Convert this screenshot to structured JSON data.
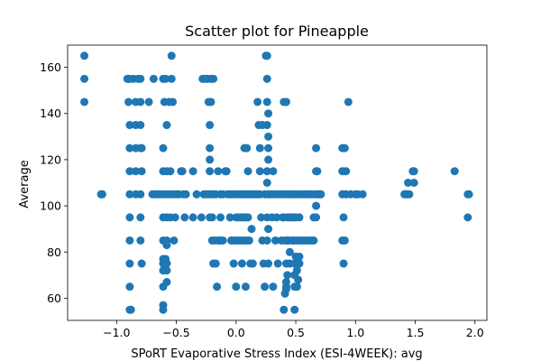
{
  "chart_data": {
    "type": "scatter",
    "title": "Scatter plot for Pineapple",
    "xlabel": "SPoRT Evaporative Stress Index (ESI-4WEEK): avg",
    "ylabel": "Average",
    "xlim": [
      -1.41,
      2.1
    ],
    "ylim": [
      50.4,
      169.6
    ],
    "xticks": [
      -1.0,
      -0.5,
      0.0,
      0.5,
      1.0,
      1.5,
      2.0
    ],
    "xtick_labels": [
      "−1.0",
      "−0.5",
      "0.0",
      "0.5",
      "1.0",
      "1.5",
      "2.0"
    ],
    "yticks": [
      60,
      80,
      100,
      120,
      140,
      160
    ],
    "ytick_labels": [
      "60",
      "80",
      "100",
      "120",
      "140",
      "160"
    ],
    "grid": false,
    "marker_color": "#1f77b4",
    "points": [
      [
        -1.27,
        165
      ],
      [
        -1.27,
        155
      ],
      [
        -1.27,
        145
      ],
      [
        -1.13,
        105
      ],
      [
        -1.12,
        105
      ],
      [
        -0.91,
        155
      ],
      [
        -0.9,
        155
      ],
      [
        -0.89,
        155
      ],
      [
        -0.86,
        155
      ],
      [
        -0.82,
        155
      ],
      [
        -0.8,
        155
      ],
      [
        -0.9,
        145
      ],
      [
        -0.89,
        135
      ],
      [
        -0.89,
        125
      ],
      [
        -0.89,
        115
      ],
      [
        -0.89,
        105
      ],
      [
        -0.89,
        95
      ],
      [
        -0.89,
        85
      ],
      [
        -0.89,
        75
      ],
      [
        -0.89,
        65
      ],
      [
        -0.89,
        55
      ],
      [
        -0.88,
        55
      ],
      [
        -0.84,
        145
      ],
      [
        -0.84,
        135
      ],
      [
        -0.84,
        125
      ],
      [
        -0.84,
        115
      ],
      [
        -0.84,
        105
      ],
      [
        -0.8,
        145
      ],
      [
        -0.8,
        135
      ],
      [
        -0.8,
        125
      ],
      [
        -0.8,
        105
      ],
      [
        -0.8,
        95
      ],
      [
        -0.8,
        85
      ],
      [
        -0.79,
        75
      ],
      [
        -0.79,
        125
      ],
      [
        -0.79,
        115
      ],
      [
        -0.73,
        145
      ],
      [
        -0.7,
        105
      ],
      [
        -0.69,
        155
      ],
      [
        -0.67,
        105
      ],
      [
        -0.66,
        105
      ],
      [
        -0.64,
        105
      ],
      [
        -0.61,
        155
      ],
      [
        -0.59,
        155
      ],
      [
        -0.6,
        145
      ],
      [
        -0.61,
        125
      ],
      [
        -0.61,
        115
      ],
      [
        -0.61,
        105
      ],
      [
        -0.61,
        95
      ],
      [
        -0.61,
        85
      ],
      [
        -0.61,
        77
      ],
      [
        -0.61,
        75
      ],
      [
        -0.61,
        72
      ],
      [
        -0.61,
        65
      ],
      [
        -0.61,
        57
      ],
      [
        -0.61,
        55
      ],
      [
        -0.58,
        135
      ],
      [
        -0.58,
        115
      ],
      [
        -0.58,
        105
      ],
      [
        -0.58,
        95
      ],
      [
        -0.58,
        85
      ],
      [
        -0.58,
        83
      ],
      [
        -0.59,
        77
      ],
      [
        -0.58,
        75
      ],
      [
        -0.58,
        72
      ],
      [
        -0.58,
        67
      ],
      [
        -0.56,
        145
      ],
      [
        -0.55,
        115
      ],
      [
        -0.55,
        105
      ],
      [
        -0.55,
        95
      ],
      [
        -0.54,
        165
      ],
      [
        -0.54,
        155
      ],
      [
        -0.53,
        145
      ],
      [
        -0.52,
        105
      ],
      [
        -0.51,
        95
      ],
      [
        -0.52,
        85
      ],
      [
        -0.5,
        105
      ],
      [
        -0.48,
        105
      ],
      [
        -0.46,
        115
      ],
      [
        -0.45,
        115
      ],
      [
        -0.44,
        105
      ],
      [
        -0.43,
        95
      ],
      [
        -0.42,
        105
      ],
      [
        -0.36,
        95
      ],
      [
        -0.36,
        115
      ],
      [
        -0.33,
        105
      ],
      [
        -0.29,
        95
      ],
      [
        -0.28,
        155
      ],
      [
        -0.26,
        155
      ],
      [
        -0.24,
        155
      ],
      [
        -0.21,
        155
      ],
      [
        -0.19,
        155
      ],
      [
        -0.27,
        105
      ],
      [
        -0.25,
        105
      ],
      [
        -0.23,
        105
      ],
      [
        -0.21,
        105
      ],
      [
        -0.19,
        105
      ],
      [
        -0.17,
        105
      ],
      [
        -0.23,
        145
      ],
      [
        -0.22,
        135
      ],
      [
        -0.22,
        125
      ],
      [
        -0.22,
        120
      ],
      [
        -0.22,
        115
      ],
      [
        -0.22,
        95
      ],
      [
        -0.21,
        145
      ],
      [
        -0.2,
        95
      ],
      [
        -0.2,
        85
      ],
      [
        -0.18,
        85
      ],
      [
        -0.17,
        75
      ],
      [
        -0.19,
        75
      ],
      [
        -0.16,
        65
      ],
      [
        -0.15,
        85
      ],
      [
        -0.14,
        85
      ],
      [
        -0.13,
        85
      ],
      [
        -0.13,
        105
      ],
      [
        -0.15,
        115
      ],
      [
        -0.13,
        95
      ],
      [
        -0.11,
        105
      ],
      [
        -0.11,
        85
      ],
      [
        -0.07,
        105
      ],
      [
        -0.05,
        105
      ],
      [
        -0.03,
        105
      ],
      [
        0.0,
        105
      ],
      [
        0.02,
        105
      ],
      [
        0.04,
        105
      ],
      [
        0.06,
        105
      ],
      [
        0.08,
        105
      ],
      [
        0.1,
        105
      ],
      [
        0.12,
        105
      ],
      [
        0.14,
        105
      ],
      [
        0.16,
        105
      ],
      [
        0.18,
        105
      ],
      [
        0.2,
        105
      ],
      [
        -0.09,
        115
      ],
      [
        -0.08,
        115
      ],
      [
        -0.05,
        95
      ],
      [
        -0.04,
        85
      ],
      [
        -0.02,
        75
      ],
      [
        0.0,
        95
      ],
      [
        0.02,
        95
      ],
      [
        0.04,
        95
      ],
      [
        0.06,
        95
      ],
      [
        0.08,
        95
      ],
      [
        0.1,
        95
      ],
      [
        -0.03,
        85
      ],
      [
        -0.01,
        85
      ],
      [
        0.01,
        85
      ],
      [
        0.03,
        85
      ],
      [
        0.05,
        85
      ],
      [
        0.07,
        85
      ],
      [
        0.09,
        85
      ],
      [
        0.11,
        85
      ],
      [
        0.0,
        65
      ],
      [
        0.05,
        75
      ],
      [
        0.08,
        65
      ],
      [
        0.1,
        115
      ],
      [
        0.12,
        75
      ],
      [
        0.13,
        90
      ],
      [
        0.14,
        75
      ],
      [
        0.07,
        125
      ],
      [
        0.09,
        125
      ],
      [
        0.1,
        105
      ],
      [
        0.18,
        145
      ],
      [
        0.19,
        135
      ],
      [
        0.2,
        125
      ],
      [
        0.2,
        115
      ],
      [
        0.22,
        135
      ],
      [
        0.21,
        95
      ],
      [
        0.22,
        85
      ],
      [
        0.23,
        75
      ],
      [
        0.24,
        65
      ],
      [
        0.24,
        105
      ],
      [
        0.25,
        165
      ],
      [
        0.26,
        165
      ],
      [
        0.26,
        155
      ],
      [
        0.26,
        145
      ],
      [
        0.27,
        140
      ],
      [
        0.26,
        135
      ],
      [
        0.27,
        130
      ],
      [
        0.27,
        125
      ],
      [
        0.27,
        120
      ],
      [
        0.26,
        115
      ],
      [
        0.26,
        110
      ],
      [
        0.27,
        105
      ],
      [
        0.26,
        95
      ],
      [
        0.27,
        90
      ],
      [
        0.26,
        85
      ],
      [
        0.27,
        75
      ],
      [
        0.28,
        105
      ],
      [
        0.3,
        105
      ],
      [
        0.32,
        105
      ],
      [
        0.34,
        95
      ],
      [
        0.35,
        105
      ],
      [
        0.35,
        75
      ],
      [
        0.3,
        95
      ],
      [
        0.33,
        85
      ],
      [
        0.31,
        115
      ],
      [
        0.31,
        65
      ],
      [
        0.37,
        105
      ],
      [
        0.39,
        105
      ],
      [
        0.4,
        95
      ],
      [
        0.41,
        85
      ],
      [
        0.38,
        85
      ],
      [
        0.39,
        95
      ],
      [
        0.42,
        105
      ],
      [
        0.43,
        95
      ],
      [
        0.43,
        85
      ],
      [
        0.42,
        75
      ],
      [
        0.43,
        70
      ],
      [
        0.42,
        65
      ],
      [
        0.44,
        105
      ],
      [
        0.45,
        95
      ],
      [
        0.44,
        85
      ],
      [
        0.45,
        75
      ],
      [
        0.45,
        80
      ],
      [
        0.4,
        145
      ],
      [
        0.42,
        145
      ],
      [
        0.41,
        62
      ],
      [
        0.4,
        55
      ],
      [
        0.42,
        64
      ],
      [
        0.42,
        67
      ],
      [
        0.46,
        95
      ],
      [
        0.47,
        105
      ],
      [
        0.47,
        85
      ],
      [
        0.48,
        105
      ],
      [
        0.48,
        95
      ],
      [
        0.48,
        85
      ],
      [
        0.49,
        75
      ],
      [
        0.49,
        70
      ],
      [
        0.49,
        65
      ],
      [
        0.49,
        55
      ],
      [
        0.5,
        105
      ],
      [
        0.5,
        95
      ],
      [
        0.5,
        85
      ],
      [
        0.5,
        78
      ],
      [
        0.51,
        72
      ],
      [
        0.51,
        65
      ],
      [
        0.52,
        105
      ],
      [
        0.52,
        85
      ],
      [
        0.53,
        95
      ],
      [
        0.53,
        75
      ],
      [
        0.52,
        68
      ],
      [
        0.53,
        78
      ],
      [
        0.54,
        105
      ],
      [
        0.54,
        85
      ],
      [
        0.56,
        85
      ],
      [
        0.57,
        105
      ],
      [
        0.58,
        85
      ],
      [
        0.59,
        105
      ],
      [
        0.6,
        85
      ],
      [
        0.61,
        105
      ],
      [
        0.62,
        85
      ],
      [
        0.63,
        105
      ],
      [
        0.64,
        85
      ],
      [
        0.65,
        85
      ],
      [
        0.65,
        95
      ],
      [
        0.66,
        105
      ],
      [
        0.67,
        125
      ],
      [
        0.67,
        115
      ],
      [
        0.67,
        105
      ],
      [
        0.67,
        100
      ],
      [
        0.67,
        95
      ],
      [
        0.68,
        115
      ],
      [
        0.69,
        105
      ],
      [
        0.7,
        105
      ],
      [
        0.71,
        105
      ],
      [
        0.89,
        125
      ],
      [
        0.89,
        115
      ],
      [
        0.89,
        105
      ],
      [
        0.9,
        95
      ],
      [
        0.89,
        85
      ],
      [
        0.9,
        75
      ],
      [
        0.91,
        125
      ],
      [
        0.92,
        115
      ],
      [
        0.92,
        105
      ],
      [
        0.91,
        85
      ],
      [
        0.94,
        145
      ],
      [
        0.96,
        105
      ],
      [
        1.0,
        105
      ],
      [
        1.02,
        105
      ],
      [
        1.06,
        105
      ],
      [
        1.41,
        105
      ],
      [
        1.42,
        105
      ],
      [
        1.43,
        105
      ],
      [
        1.44,
        110
      ],
      [
        1.45,
        105
      ],
      [
        1.48,
        115
      ],
      [
        1.49,
        115
      ],
      [
        1.49,
        110
      ],
      [
        1.83,
        115
      ],
      [
        1.94,
        105
      ],
      [
        1.95,
        105
      ],
      [
        1.94,
        95
      ]
    ]
  }
}
